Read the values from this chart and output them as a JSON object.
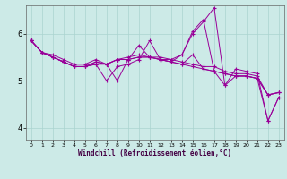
{
  "background_color": "#cceae7",
  "grid_color": "#aad4d0",
  "line_color": "#990099",
  "marker": "+",
  "marker_size": 3,
  "xlabel": "Windchill (Refroidissement éolien,°C)",
  "xlim": [
    -0.5,
    23.5
  ],
  "ylim": [
    3.75,
    6.6
  ],
  "yticks": [
    4,
    5,
    6
  ],
  "xticks": [
    0,
    1,
    2,
    3,
    4,
    5,
    6,
    7,
    8,
    9,
    10,
    11,
    12,
    13,
    14,
    15,
    16,
    17,
    18,
    19,
    20,
    21,
    22,
    23
  ],
  "series": [
    [
      5.85,
      5.6,
      5.55,
      5.45,
      5.35,
      5.35,
      5.45,
      5.35,
      5.45,
      5.45,
      5.5,
      5.5,
      5.45,
      5.4,
      5.35,
      5.3,
      5.25,
      5.2,
      5.15,
      5.1,
      5.1,
      5.05,
      4.7,
      4.75
    ],
    [
      5.85,
      5.6,
      5.5,
      5.4,
      5.3,
      5.3,
      5.35,
      5.0,
      5.3,
      5.35,
      5.45,
      5.85,
      5.45,
      5.45,
      5.55,
      6.0,
      6.25,
      6.55,
      4.9,
      5.25,
      5.2,
      5.15,
      4.15,
      4.65
    ],
    [
      5.85,
      5.6,
      5.5,
      5.4,
      5.3,
      5.3,
      5.4,
      5.35,
      5.45,
      5.5,
      5.55,
      5.5,
      5.5,
      5.45,
      5.4,
      5.35,
      5.3,
      5.3,
      5.2,
      5.15,
      5.15,
      5.1,
      4.7,
      4.75
    ],
    [
      5.85,
      5.6,
      5.5,
      5.4,
      5.3,
      5.3,
      5.35,
      5.35,
      5.45,
      5.45,
      5.5,
      5.5,
      5.45,
      5.4,
      5.35,
      5.55,
      5.25,
      5.2,
      5.15,
      5.1,
      5.1,
      5.05,
      4.7,
      4.75
    ],
    [
      5.85,
      5.6,
      5.5,
      5.4,
      5.3,
      5.3,
      5.4,
      5.35,
      5.0,
      5.45,
      5.75,
      5.5,
      5.45,
      5.4,
      5.55,
      6.05,
      6.3,
      5.2,
      4.9,
      5.1,
      5.1,
      5.05,
      4.15,
      4.65
    ]
  ]
}
